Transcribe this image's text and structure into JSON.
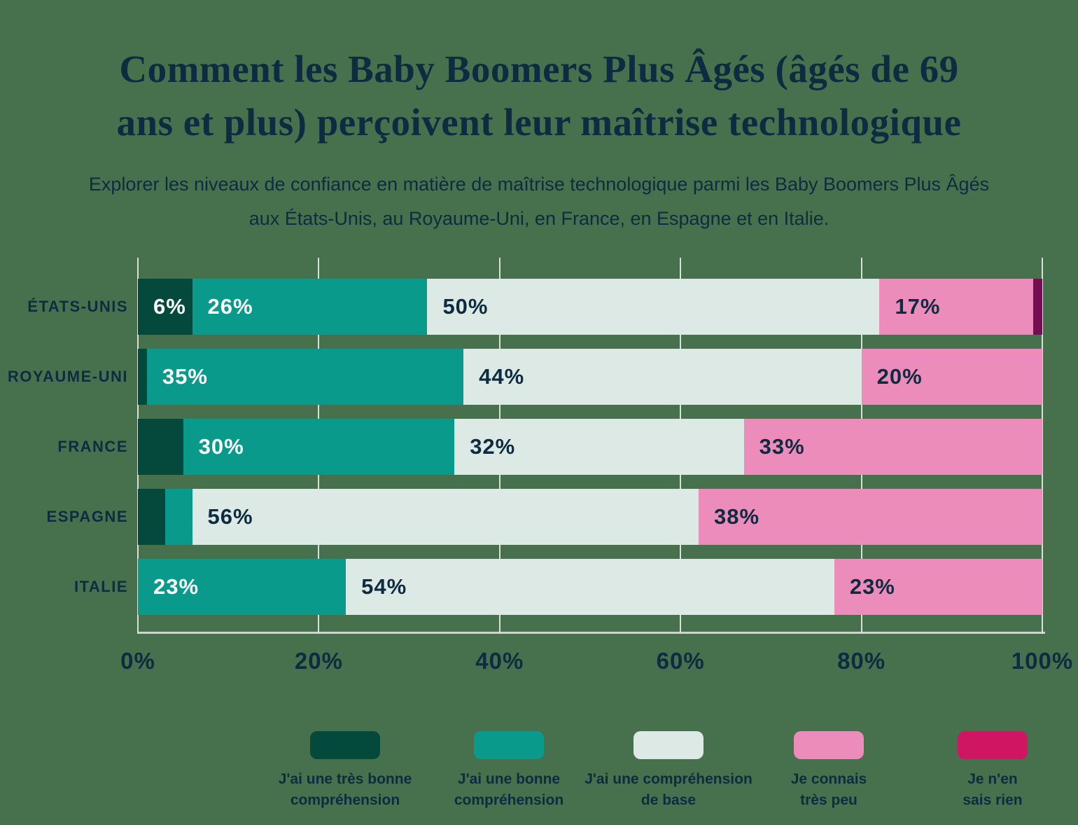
{
  "page": {
    "background_color": "#47714C",
    "text_color": "#0D2C41",
    "gridline_color": "#D8E0DA",
    "axis_line_color": "#C9D4CC"
  },
  "header": {
    "title_line1": "Comment les Baby Boomers Plus Âgés (âgés de 69",
    "title_line2": "ans et plus) perçoivent leur maîtrise technologique",
    "subtitle": "Explorer les niveaux de confiance en matière de maîtrise technologique parmi les Baby Boomers Plus Âgés aux États-Unis, au Royaume-Uni, en France, en Espagne et en Italie."
  },
  "chart_data": {
    "type": "bar",
    "orientation": "horizontal",
    "stacked": true,
    "unit": "%",
    "xlim": [
      0,
      100
    ],
    "grid": "vertical",
    "legend_position": "bottom",
    "categories": [
      "ÉTATS-UNIS",
      "ROYAUME-UNI",
      "FRANCE",
      "ESPAGNE",
      "ITALIE"
    ],
    "series": [
      {
        "name": "J'ai une très bonne compréhension",
        "color": "#05493D",
        "label_color": "#FFFFFF",
        "values": [
          6,
          1,
          5,
          3,
          0
        ]
      },
      {
        "name": "J'ai une bonne compréhension",
        "color": "#0A9A8C",
        "label_color": "#FFFFFF",
        "values": [
          26,
          35,
          30,
          3,
          23
        ]
      },
      {
        "name": "J'ai une compréhension de base",
        "color": "#DCE9E5",
        "label_color": "#0D2C41",
        "values": [
          50,
          44,
          32,
          56,
          54
        ]
      },
      {
        "name": "Je connais très peu",
        "color": "#EC8CBB",
        "label_color": "#0D2C41",
        "values": [
          17,
          20,
          33,
          38,
          23
        ]
      },
      {
        "name": "Je n'en sais rien",
        "color": "#CE1663",
        "bar_color": "#750E51",
        "label_color": "#FFFFFF",
        "values": [
          1,
          0,
          0,
          0,
          0
        ]
      }
    ],
    "value_label_format": "{v}%",
    "label_min_value": 6,
    "x_tick_labels": [
      "0%",
      "20%",
      "40%",
      "60%",
      "80%",
      "100%"
    ]
  },
  "legend": {
    "items": [
      {
        "line1": "J'ai une très bonne",
        "line2": "compréhension",
        "color": "#05493D"
      },
      {
        "line1": "J'ai une bonne",
        "line2": "compréhension",
        "color": "#0A9A8C"
      },
      {
        "line1": "J'ai une compréhension",
        "line2": "de base",
        "color": "#DCE9E5"
      },
      {
        "line1": "Je connais",
        "line2": "très peu",
        "color": "#EC8CBB"
      },
      {
        "line1": "Je n'en",
        "line2": "sais rien",
        "color": "#CE1663"
      }
    ]
  }
}
